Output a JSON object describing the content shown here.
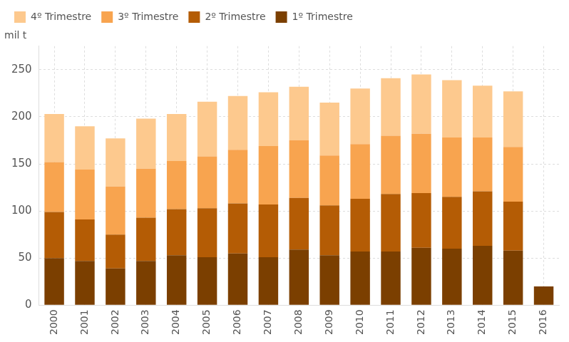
{
  "chart_data": {
    "type": "bar",
    "stacked": true,
    "y_label": "mil t",
    "categories": [
      "2000",
      "2001",
      "2002",
      "2003",
      "2004",
      "2005",
      "2006",
      "2007",
      "2008",
      "2009",
      "2010",
      "2011",
      "2012",
      "2013",
      "2014",
      "2015",
      "2016"
    ],
    "series": [
      {
        "name": "1º Trimestre",
        "color": "#7b3f00",
        "values": [
          50,
          47,
          39,
          47,
          53,
          51,
          55,
          51,
          59,
          53,
          57,
          57,
          61,
          60,
          63,
          58,
          20
        ]
      },
      {
        "name": "2º Trimestre",
        "color": "#b45c05",
        "values": [
          49,
          44,
          36,
          46,
          49,
          52,
          53,
          56,
          55,
          53,
          56,
          61,
          58,
          55,
          58,
          52,
          null
        ]
      },
      {
        "name": "3º Trimestre",
        "color": "#f8a44f",
        "values": [
          53,
          53,
          51,
          52,
          51,
          55,
          57,
          62,
          61,
          53,
          58,
          62,
          63,
          63,
          57,
          58,
          null
        ]
      },
      {
        "name": "4º Trimestre",
        "color": "#fdc98e",
        "values": [
          51,
          46,
          51,
          53,
          50,
          58,
          57,
          57,
          57,
          56,
          59,
          61,
          63,
          61,
          55,
          59,
          null
        ]
      }
    ],
    "ylim": [
      0,
      275
    ],
    "yticks": [
      0,
      50,
      100,
      150,
      200,
      250
    ],
    "grid": true,
    "legend": "top-left"
  }
}
